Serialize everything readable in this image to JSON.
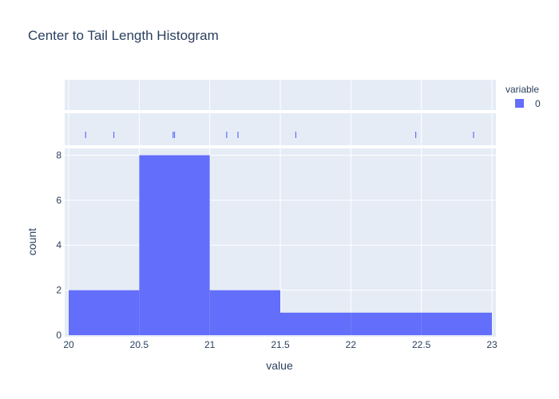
{
  "chart_data": {
    "type": "bar",
    "subtype": "histogram",
    "title": "Center to Tail Length Histogram",
    "xlabel": "value",
    "ylabel": "count",
    "xlim": [
      20,
      23
    ],
    "ylim": [
      0,
      8.3
    ],
    "x_ticks": [
      "20",
      "20.5",
      "21",
      "21.5",
      "22",
      "22.5",
      "23"
    ],
    "y_ticks": [
      "0",
      "2",
      "4",
      "6",
      "8"
    ],
    "bins": [
      {
        "start": 20.0,
        "end": 20.5,
        "count": 2
      },
      {
        "start": 20.5,
        "end": 21.0,
        "count": 8
      },
      {
        "start": 21.0,
        "end": 21.5,
        "count": 2
      },
      {
        "start": 21.5,
        "end": 22.0,
        "count": 1
      },
      {
        "start": 22.0,
        "end": 22.5,
        "count": 1
      },
      {
        "start": 22.5,
        "end": 23.0,
        "count": 1
      }
    ],
    "rug_values": [
      20.12,
      20.32,
      20.74,
      20.75,
      21.12,
      21.2,
      21.61,
      22.46,
      22.87
    ],
    "legend": {
      "title": "variable",
      "entries": [
        {
          "name": "0",
          "color": "#636efa"
        }
      ],
      "placement": "top-right"
    },
    "grid": true,
    "colors": {
      "bar": "#636efa",
      "plot_background": "#e5ecf6",
      "grid": "#ffffff",
      "text": "#2a3f5f"
    }
  }
}
